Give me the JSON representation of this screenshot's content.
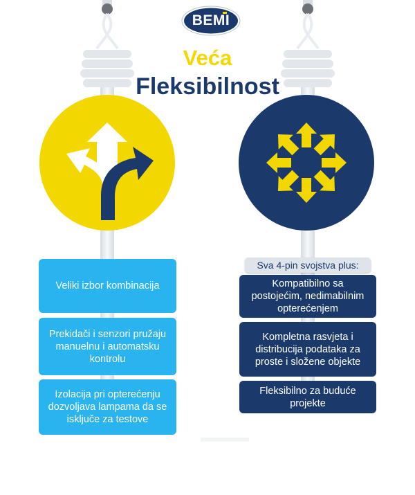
{
  "logo": {
    "text": "BEMI"
  },
  "title": {
    "line1": "Veća",
    "line2": "Fleksibilnost"
  },
  "colors": {
    "yellow": "#f2d800",
    "navy": "#1b3a6b",
    "sky": "#29b4f0",
    "cable": "#e9edf1"
  },
  "left_column": {
    "items": [
      {
        "text": "Veliki izbor kombinacija"
      },
      {
        "text": "Prekidači i senzori pružaju manuelnu i automatsku kontrolu"
      },
      {
        "text": "Izolacija pri opterećenju dozvoljava lampama da se isključe za testove"
      }
    ]
  },
  "right_column": {
    "header": "Sva 4-pin svojstva plus:",
    "items": [
      {
        "text": "Kompatibilno sa postojećim, nedimabilnim opterećenjem"
      },
      {
        "text": "Kompletna rasvjeta i distribucija podataka za proste i složene objekte"
      },
      {
        "text": "Fleksibilno za buduće projekte"
      }
    ]
  },
  "icons": {
    "left": "split-road-arrows-icon",
    "right": "expand-arrows-icon"
  }
}
